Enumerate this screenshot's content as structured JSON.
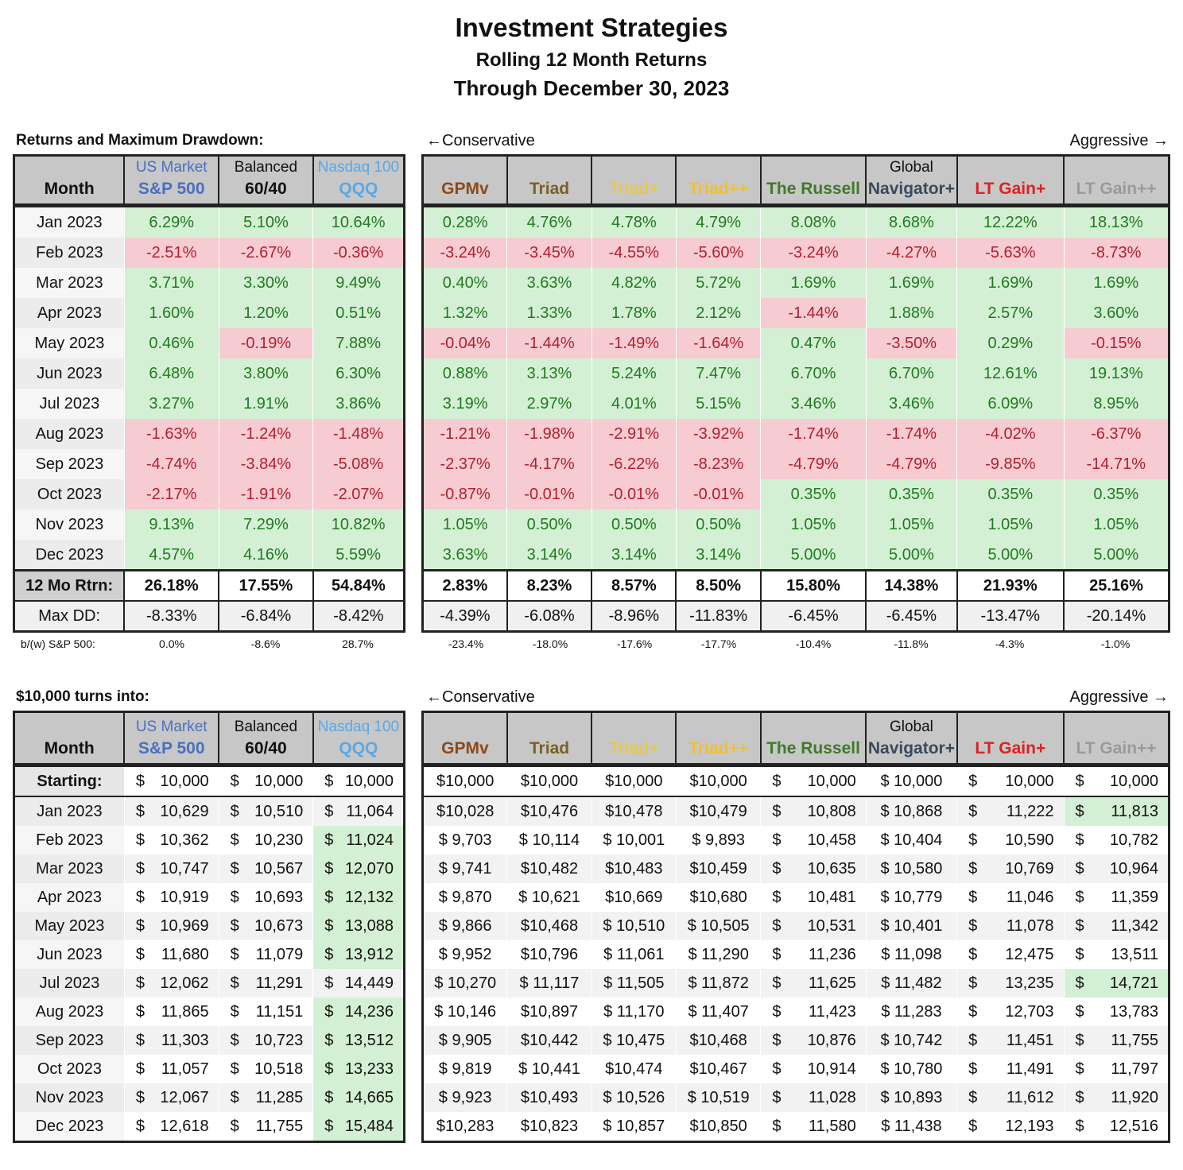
{
  "title": "Investment Strategies",
  "subtitle": "Rolling 12 Month Returns",
  "date_line": "Through December 30, 2023",
  "section1": "Returns and Maximum Drawdown:",
  "section2": "$10,000 turns into:",
  "conservative": "←Conservative",
  "aggressive": "Aggressive →",
  "colors": {
    "sp500": "#4a6fc1",
    "qqq": "#5aa8e6",
    "gpmv": "#8b4a1a",
    "triad": "#7a6024",
    "triadplus": "#e8c84a",
    "triadpp": "#f0c030",
    "russell": "#3f7a2a",
    "navigator": "#3a4a5c",
    "ltgain": "#e02020",
    "ltgainpp": "#9a9a9a"
  },
  "left_headers": [
    {
      "sub": "",
      "main": "Month"
    },
    {
      "sub": "US Market",
      "main": "S&P 500"
    },
    {
      "sub": "Balanced",
      "main": "60/40"
    },
    {
      "sub": "Nasdaq 100",
      "main": "QQQ"
    }
  ],
  "right_headers": [
    {
      "sub": "",
      "main": "GPMv"
    },
    {
      "sub": "",
      "main": "Triad"
    },
    {
      "sub": "",
      "main": "Triad+"
    },
    {
      "sub": "",
      "main": "Triad++"
    },
    {
      "sub": "",
      "main": "The Russell"
    },
    {
      "sub": "Global",
      "main": "Navigator+"
    },
    {
      "sub": "",
      "main": "LT Gain+"
    },
    {
      "sub": "",
      "main": "LT Gain++"
    }
  ],
  "months": [
    "Jan 2023",
    "Feb 2023",
    "Mar 2023",
    "Apr 2023",
    "May 2023",
    "Jun 2023",
    "Jul 2023",
    "Aug 2023",
    "Sep 2023",
    "Oct 2023",
    "Nov 2023",
    "Dec 2023"
  ],
  "returns": [
    [
      "6.29%",
      "5.10%",
      "10.64%",
      "0.28%",
      "4.76%",
      "4.78%",
      "4.79%",
      "8.08%",
      "8.68%",
      "12.22%",
      "18.13%"
    ],
    [
      "-2.51%",
      "-2.67%",
      "-0.36%",
      "-3.24%",
      "-3.45%",
      "-4.55%",
      "-5.60%",
      "-3.24%",
      "-4.27%",
      "-5.63%",
      "-8.73%"
    ],
    [
      "3.71%",
      "3.30%",
      "9.49%",
      "0.40%",
      "3.63%",
      "4.82%",
      "5.72%",
      "1.69%",
      "1.69%",
      "1.69%",
      "1.69%"
    ],
    [
      "1.60%",
      "1.20%",
      "0.51%",
      "1.32%",
      "1.33%",
      "1.78%",
      "2.12%",
      "-1.44%",
      "1.88%",
      "2.57%",
      "3.60%"
    ],
    [
      "0.46%",
      "-0.19%",
      "7.88%",
      "-0.04%",
      "-1.44%",
      "-1.49%",
      "-1.64%",
      "0.47%",
      "-3.50%",
      "0.29%",
      "-0.15%"
    ],
    [
      "6.48%",
      "3.80%",
      "6.30%",
      "0.88%",
      "3.13%",
      "5.24%",
      "7.47%",
      "6.70%",
      "6.70%",
      "12.61%",
      "19.13%"
    ],
    [
      "3.27%",
      "1.91%",
      "3.86%",
      "3.19%",
      "2.97%",
      "4.01%",
      "5.15%",
      "3.46%",
      "3.46%",
      "6.09%",
      "8.95%"
    ],
    [
      "-1.63%",
      "-1.24%",
      "-1.48%",
      "-1.21%",
      "-1.98%",
      "-2.91%",
      "-3.92%",
      "-1.74%",
      "-1.74%",
      "-4.02%",
      "-6.37%"
    ],
    [
      "-4.74%",
      "-3.84%",
      "-5.08%",
      "-2.37%",
      "-4.17%",
      "-6.22%",
      "-8.23%",
      "-4.79%",
      "-4.79%",
      "-9.85%",
      "-14.71%"
    ],
    [
      "-2.17%",
      "-1.91%",
      "-2.07%",
      "-0.87%",
      "-0.01%",
      "-0.01%",
      "-0.01%",
      "0.35%",
      "0.35%",
      "0.35%",
      "0.35%"
    ],
    [
      "9.13%",
      "7.29%",
      "10.82%",
      "1.05%",
      "0.50%",
      "0.50%",
      "0.50%",
      "1.05%",
      "1.05%",
      "1.05%",
      "1.05%"
    ],
    [
      "4.57%",
      "4.16%",
      "5.59%",
      "3.63%",
      "3.14%",
      "3.14%",
      "3.14%",
      "5.00%",
      "5.00%",
      "5.00%",
      "5.00%"
    ]
  ],
  "rtrn_label": "12 Mo Rtrn:",
  "rtrn": [
    "26.18%",
    "17.55%",
    "54.84%",
    "2.83%",
    "8.23%",
    "8.57%",
    "8.50%",
    "15.80%",
    "14.38%",
    "21.93%",
    "25.16%"
  ],
  "maxdd_label": "Max DD:",
  "maxdd": [
    "-8.33%",
    "-6.84%",
    "-8.42%",
    "-4.39%",
    "-6.08%",
    "-8.96%",
    "-11.83%",
    "-6.45%",
    "-6.45%",
    "-13.47%",
    "-20.14%"
  ],
  "bw_label": "b/(w) S&P 500:",
  "bw": [
    "0.0%",
    "-8.6%",
    "28.7%",
    "-23.4%",
    "-18.0%",
    "-17.6%",
    "-17.7%",
    "-10.4%",
    "-11.8%",
    "-4.3%",
    "-1.0%"
  ],
  "starting_label": "Starting:",
  "dollar_sign": "$",
  "starting": [
    "10,000",
    "10,000",
    "10,000",
    "$10,000",
    "$10,000",
    "$10,000",
    "$10,000",
    "10,000",
    "$ 10,000",
    "10,000",
    "10,000"
  ],
  "values": [
    [
      "10,629",
      "10,510",
      "11,064",
      "$10,028",
      "$10,476",
      "$10,478",
      "$10,479",
      "10,808",
      "$ 10,868",
      "11,222",
      "11,813"
    ],
    [
      "10,362",
      "10,230",
      "11,024",
      "$ 9,703",
      "$ 10,114",
      "$ 10,001",
      "$ 9,893",
      "10,458",
      "$ 10,404",
      "10,590",
      "10,782"
    ],
    [
      "10,747",
      "10,567",
      "12,070",
      "$ 9,741",
      "$10,482",
      "$10,483",
      "$10,459",
      "10,635",
      "$ 10,580",
      "10,769",
      "10,964"
    ],
    [
      "10,919",
      "10,693",
      "12,132",
      "$ 9,870",
      "$ 10,621",
      "$10,669",
      "$10,680",
      "10,481",
      "$ 10,779",
      "11,046",
      "11,359"
    ],
    [
      "10,969",
      "10,673",
      "13,088",
      "$ 9,866",
      "$10,468",
      "$ 10,510",
      "$ 10,505",
      "10,531",
      "$ 10,401",
      "11,078",
      "11,342"
    ],
    [
      "11,680",
      "11,079",
      "13,912",
      "$ 9,952",
      "$10,796",
      "$ 11,061",
      "$ 11,290",
      "11,236",
      "$ 11,098",
      "12,475",
      "13,511"
    ],
    [
      "12,062",
      "11,291",
      "14,449",
      "$ 10,270",
      "$ 11,117",
      "$ 11,505",
      "$ 11,872",
      "11,625",
      "$ 11,482",
      "13,235",
      "14,721"
    ],
    [
      "11,865",
      "11,151",
      "14,236",
      "$ 10,146",
      "$10,897",
      "$ 11,170",
      "$ 11,407",
      "11,423",
      "$ 11,283",
      "12,703",
      "13,783"
    ],
    [
      "11,303",
      "10,723",
      "13,512",
      "$ 9,905",
      "$10,442",
      "$ 10,475",
      "$10,468",
      "10,876",
      "$ 10,742",
      "11,451",
      "11,755"
    ],
    [
      "11,057",
      "10,518",
      "13,233",
      "$ 9,819",
      "$ 10,441",
      "$10,474",
      "$10,467",
      "10,914",
      "$ 10,780",
      "11,491",
      "11,797"
    ],
    [
      "12,067",
      "11,285",
      "14,665",
      "$ 9,923",
      "$10,493",
      "$ 10,526",
      "$ 10,519",
      "11,028",
      "$ 10,893",
      "11,612",
      "11,920"
    ],
    [
      "12,618",
      "11,755",
      "15,484",
      "$10,283",
      "$10,823",
      "$ 10,857",
      "$10,850",
      "11,580",
      "$ 11,438",
      "12,193",
      "12,516"
    ]
  ]
}
